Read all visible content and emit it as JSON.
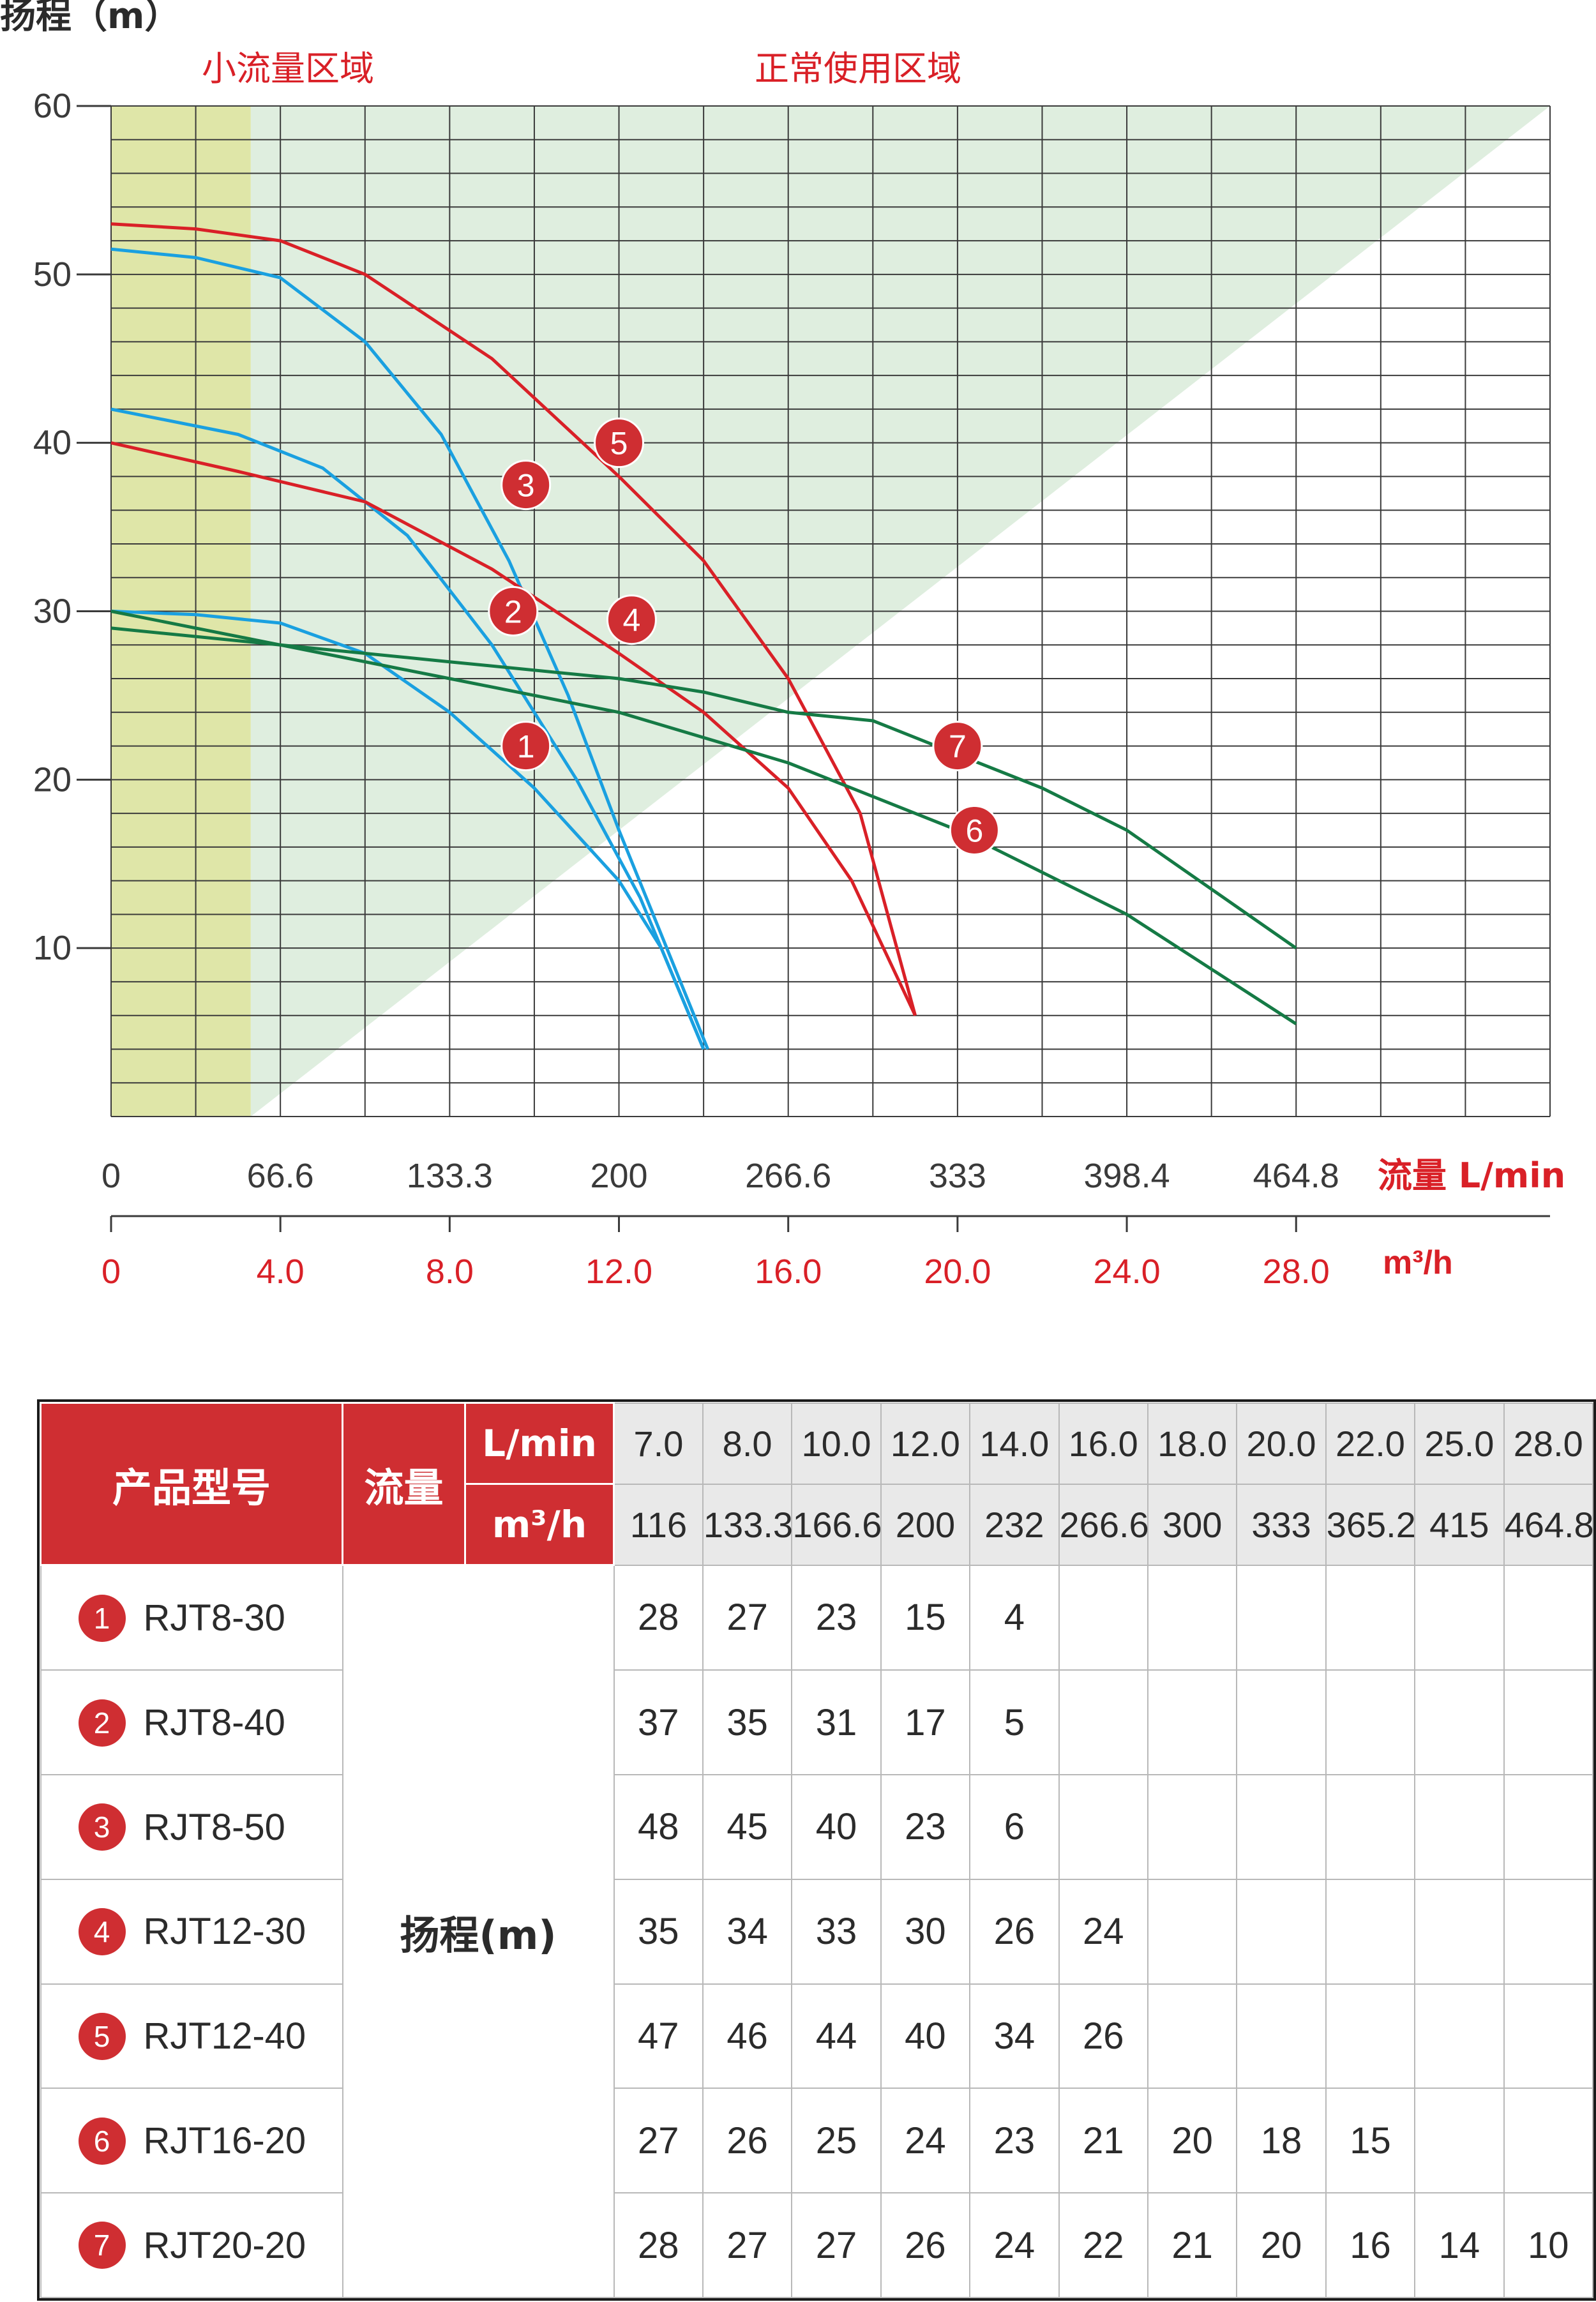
{
  "chart_data": {
    "type": "line",
    "ylabel": "扬程（m）",
    "y_ticks": [
      "10",
      "20",
      "30",
      "40",
      "50",
      "60"
    ],
    "ylim": [
      0,
      60
    ],
    "xlim_m3h": [
      0,
      34
    ],
    "x_ticks_lmin": [
      "0",
      "66.6",
      "133.3",
      "200",
      "266.6",
      "333",
      "398.4",
      "464.8"
    ],
    "x_ticks_m3h": [
      "0",
      "4.0",
      "8.0",
      "12.0",
      "16.0",
      "20.0",
      "24.0",
      "28.0"
    ],
    "x_unit_lmin": "流量 L/min",
    "x_unit_m3h": "m³/h",
    "zones": [
      {
        "label": "小流量区域",
        "color": "#dfe6a8",
        "x_range_m3h": [
          0,
          3.3
        ]
      },
      {
        "label": "正常使用区域",
        "color": "#dfeedf",
        "description_boundary_m3h": [
          [
            3.3,
            0
          ],
          [
            34,
            60
          ]
        ]
      }
    ],
    "grid": true,
    "series": [
      {
        "name": "1",
        "color": "#1aa0e0",
        "points": [
          [
            0,
            30
          ],
          [
            2,
            29.8
          ],
          [
            4,
            29.3
          ],
          [
            6,
            27.5
          ],
          [
            8,
            24
          ],
          [
            10,
            19.5
          ],
          [
            12,
            14
          ],
          [
            13,
            10
          ],
          [
            14,
            4
          ]
        ]
      },
      {
        "name": "2",
        "color": "#1aa0e0",
        "points": [
          [
            0,
            42
          ],
          [
            3,
            40.5
          ],
          [
            5,
            38.5
          ],
          [
            7,
            34.5
          ],
          [
            9,
            28
          ],
          [
            11,
            20
          ],
          [
            12.5,
            13
          ],
          [
            14,
            4
          ]
        ]
      },
      {
        "name": "3",
        "color": "#1aa0e0",
        "points": [
          [
            0,
            51.5
          ],
          [
            2,
            51
          ],
          [
            4,
            49.8
          ],
          [
            6,
            46
          ],
          [
            7.8,
            40.5
          ],
          [
            9.4,
            33
          ],
          [
            10.8,
            25
          ],
          [
            12,
            17
          ],
          [
            14.1,
            4
          ]
        ]
      },
      {
        "name": "4",
        "color": "#d92027",
        "points": [
          [
            0,
            40
          ],
          [
            3,
            38.3
          ],
          [
            6,
            36.5
          ],
          [
            9,
            32.5
          ],
          [
            12,
            27.5
          ],
          [
            14,
            24
          ],
          [
            16,
            19.5
          ],
          [
            17.5,
            14
          ],
          [
            19,
            6
          ]
        ]
      },
      {
        "name": "5",
        "color": "#d92027",
        "points": [
          [
            0,
            53
          ],
          [
            2,
            52.7
          ],
          [
            4,
            52
          ],
          [
            6,
            50
          ],
          [
            9,
            45
          ],
          [
            12,
            38
          ],
          [
            14,
            33
          ],
          [
            16,
            26
          ],
          [
            17.7,
            18
          ],
          [
            19,
            6
          ]
        ]
      },
      {
        "name": "6",
        "color": "#157a45",
        "points": [
          [
            0,
            30
          ],
          [
            4,
            28
          ],
          [
            8,
            26
          ],
          [
            12,
            24
          ],
          [
            16,
            21
          ],
          [
            20,
            17
          ],
          [
            24,
            12
          ],
          [
            28,
            5.5
          ]
        ]
      },
      {
        "name": "7",
        "color": "#157a45",
        "points": [
          [
            0,
            29
          ],
          [
            4,
            28
          ],
          [
            8,
            27
          ],
          [
            12,
            26
          ],
          [
            14,
            25.2
          ],
          [
            16,
            24
          ],
          [
            18,
            23.5
          ],
          [
            20,
            21.5
          ],
          [
            22,
            19.5
          ],
          [
            24,
            17
          ],
          [
            26,
            13.5
          ],
          [
            28,
            10
          ]
        ]
      }
    ],
    "annotations": [
      {
        "text": "1",
        "x": 9.8,
        "y": 22
      },
      {
        "text": "2",
        "x": 9.5,
        "y": 30
      },
      {
        "text": "3",
        "x": 9.8,
        "y": 37.5
      },
      {
        "text": "4",
        "x": 12.3,
        "y": 29.5
      },
      {
        "text": "5",
        "x": 12.0,
        "y": 40
      },
      {
        "text": "6",
        "x": 20.4,
        "y": 17
      },
      {
        "text": "7",
        "x": 20.0,
        "y": 22
      }
    ]
  },
  "table": {
    "header_model": "产品型号",
    "header_flow": "流量",
    "unit_lmin": "L/min",
    "unit_m3h": "m³/h",
    "flow_lmin": [
      "7.0",
      "8.0",
      "10.0",
      "12.0",
      "14.0",
      "16.0",
      "18.0",
      "20.0",
      "22.0",
      "25.0",
      "28.0"
    ],
    "flow_m3h": [
      "116",
      "133.3",
      "166.6",
      "200",
      "232",
      "266.6",
      "300",
      "333",
      "365.2",
      "415",
      "464.8"
    ],
    "head_label": "扬程(m)",
    "rows": [
      {
        "no": "1",
        "model": "RJT8-30",
        "values": [
          "28",
          "27",
          "23",
          "15",
          "4",
          "",
          "",
          "",
          "",
          "",
          ""
        ]
      },
      {
        "no": "2",
        "model": "RJT8-40",
        "values": [
          "37",
          "35",
          "31",
          "17",
          "5",
          "",
          "",
          "",
          "",
          "",
          ""
        ]
      },
      {
        "no": "3",
        "model": "RJT8-50",
        "values": [
          "48",
          "45",
          "40",
          "23",
          "6",
          "",
          "",
          "",
          "",
          "",
          ""
        ]
      },
      {
        "no": "4",
        "model": "RJT12-30",
        "values": [
          "35",
          "34",
          "33",
          "30",
          "26",
          "24",
          "",
          "",
          "",
          "",
          ""
        ]
      },
      {
        "no": "5",
        "model": "RJT12-40",
        "values": [
          "47",
          "46",
          "44",
          "40",
          "34",
          "26",
          "",
          "",
          "",
          "",
          ""
        ]
      },
      {
        "no": "6",
        "model": "RJT16-20",
        "values": [
          "27",
          "26",
          "25",
          "24",
          "23",
          "21",
          "20",
          "18",
          "15",
          "",
          ""
        ]
      },
      {
        "no": "7",
        "model": "RJT20-20",
        "values": [
          "28",
          "27",
          "27",
          "26",
          "24",
          "22",
          "21",
          "20",
          "16",
          "14",
          "10"
        ]
      }
    ]
  }
}
